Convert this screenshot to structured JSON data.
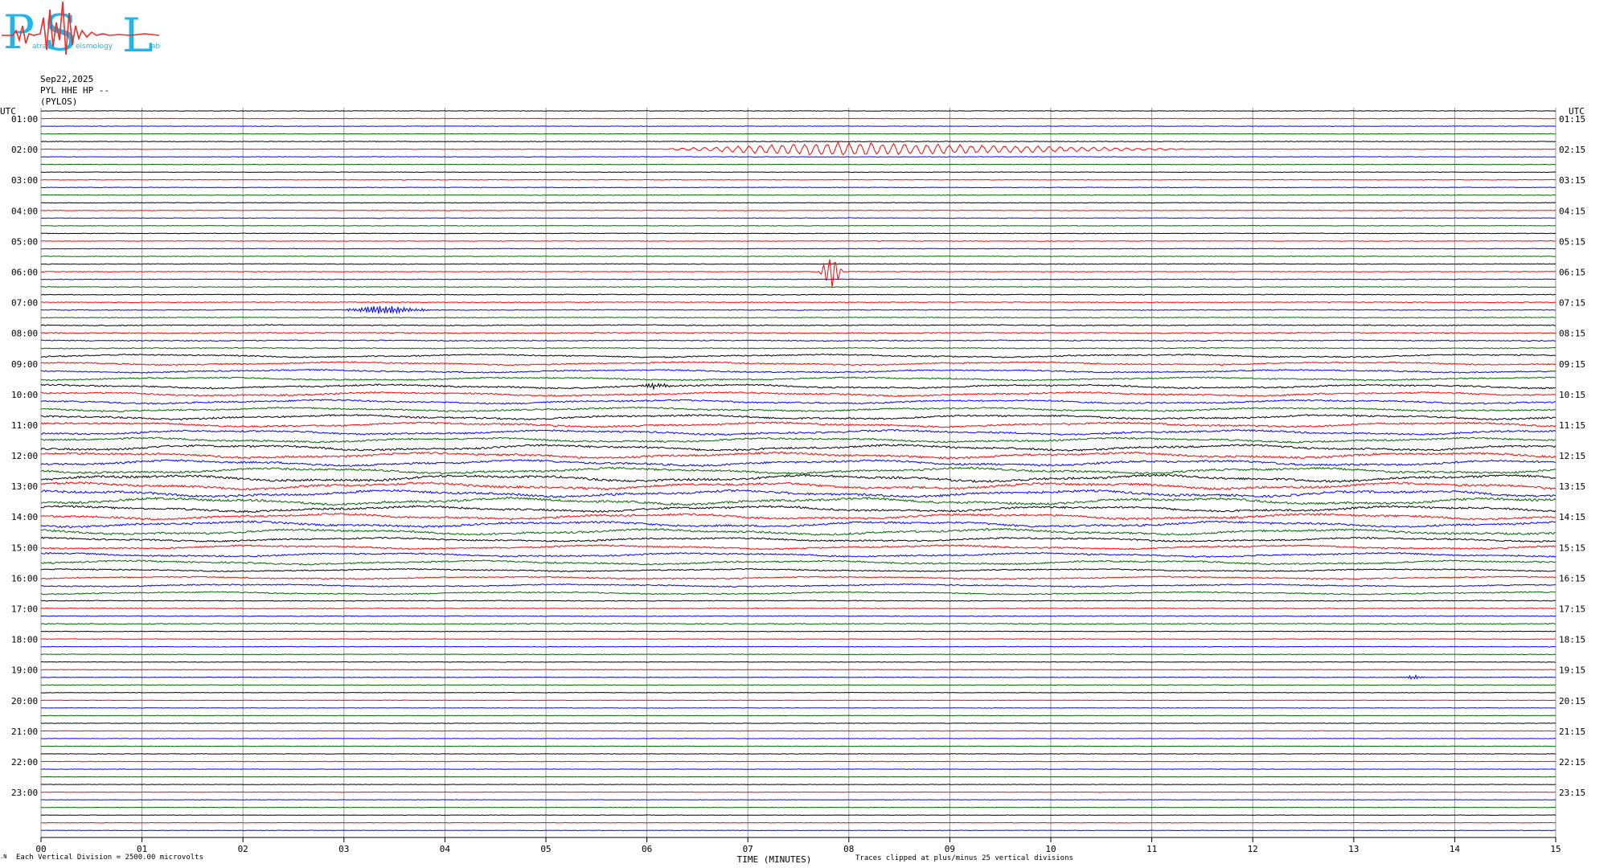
{
  "logo": {
    "letters": [
      "P",
      "S",
      "L"
    ],
    "small_words": [
      "atras",
      "eismology",
      "ab"
    ],
    "colors": {
      "letters": "#22b6e8",
      "trace": "#ef2b2b"
    }
  },
  "header": {
    "date": "Sep22,2025",
    "station": "PYL HHE HP --",
    "location": "(PYLOS)"
  },
  "chart_data": {
    "type": "line",
    "subtype": "helicorder",
    "left_axis_label": "UTC",
    "right_axis_label": "UTC",
    "xlabel": "TIME (MINUTES)",
    "x_ticks": [
      "00",
      "01",
      "02",
      "03",
      "04",
      "05",
      "06",
      "07",
      "08",
      "09",
      "10",
      "11",
      "12",
      "13",
      "14",
      "15"
    ],
    "xlim": [
      0,
      15
    ],
    "left_labels": [
      "01:00",
      "02:00",
      "03:00",
      "04:00",
      "05:00",
      "06:00",
      "07:00",
      "08:00",
      "09:00",
      "10:00",
      "11:00",
      "12:00",
      "13:00",
      "14:00",
      "15:00",
      "16:00",
      "17:00",
      "18:00",
      "19:00",
      "20:00",
      "21:00",
      "22:00",
      "23:00"
    ],
    "right_labels": [
      "01:15",
      "02:15",
      "03:15",
      "04:15",
      "05:15",
      "06:15",
      "07:15",
      "08:15",
      "09:15",
      "10:15",
      "11:15",
      "12:15",
      "13:15",
      "14:15",
      "15:15",
      "16:15",
      "17:15",
      "18:15",
      "19:15",
      "20:15",
      "21:15",
      "22:15",
      "23:15"
    ],
    "trace_offsets": [
      "-5298",
      "-5363",
      "-5140",
      "-5104",
      "-5234",
      "-5314",
      "-5408",
      "-5346",
      "-5425",
      "-5423",
      "-5336",
      "-5302",
      "-5308",
      "-5416",
      "-5309",
      "-5252",
      "-5423",
      "-5192",
      "-5287",
      "-4689",
      "-3025",
      "-2998",
      "-2694",
      "-2966",
      "-3057",
      "-2025",
      "-3065",
      "-3724",
      "-3269",
      "-4106",
      "-3947",
      "-4957",
      "-5420",
      "-6525",
      "-6393",
      "-5998",
      "-6538",
      "-5886",
      "-5677",
      "-5674",
      "-5112",
      "-6054",
      "-5377",
      "-5201",
      "-5726",
      "-5442",
      "-4624",
      "-5314",
      "-5177",
      "-5986",
      "-4571",
      "-5293",
      "-5930",
      "-5164",
      "-5651",
      "-6053",
      "-6268",
      "-6061",
      "-5801",
      "-6199",
      "-6017",
      "-5821",
      "-5994",
      "-5960",
      "-6045",
      "-6665",
      "-6013",
      "-6016",
      "-5956",
      "-5920",
      "-5379",
      "-5835",
      "-5790",
      "-5788",
      "-5764",
      "-5697",
      "-5761",
      "-5675",
      "-5689",
      "-5687",
      "-5736",
      "-5634",
      "-5627",
      "-5669",
      "-5680",
      "-5601",
      "-5567",
      "-5624",
      "-5582",
      "-5484",
      "-5447",
      "-5499",
      "-5487",
      "-5421",
      "-5442"
    ],
    "trace_colors": [
      "#000000",
      "#ff0000",
      "#0000ff",
      "#006400"
    ],
    "noise_level_by_hour": [
      0.55,
      0.55,
      0.55,
      0.6,
      0.6,
      0.7,
      0.8,
      1.0,
      1.35,
      1.6,
      1.8,
      2.1,
      2.4,
      2.1,
      1.6,
      1.2,
      0.8,
      0.6,
      0.55,
      0.5,
      0.5,
      0.45,
      0.45,
      0.45
    ],
    "events": [
      {
        "trace": 5,
        "start_min": 6.05,
        "end_min": 11.5,
        "peak_min": 7.8,
        "amplitude": 9,
        "period_min": 0.11,
        "description": "teleseismic wave train"
      },
      {
        "trace": 21,
        "start_min": 7.7,
        "end_min": 7.95,
        "peak_min": 7.82,
        "amplitude": 26,
        "period_min": 0.015,
        "description": "local event"
      },
      {
        "trace": 26,
        "start_min": 2.95,
        "end_min": 3.95,
        "peak_min": 3.35,
        "amplitude": 6,
        "period_min": 0.02,
        "description": "local event"
      },
      {
        "trace": 74,
        "start_min": 13.45,
        "end_min": 13.75,
        "peak_min": 13.6,
        "amplitude": 3,
        "period_min": 0.02,
        "description": "small event"
      },
      {
        "trace": 36,
        "start_min": 5.9,
        "end_min": 6.3,
        "peak_min": 6.05,
        "amplitude": 4,
        "period_min": 0.03,
        "description": "small event"
      }
    ]
  },
  "footer": {
    "vertical_division": "Each Vertical Division = 2500.00 microvolts",
    "clip_note": "Traces clipped at plus/minus 25 vertical divisions"
  }
}
